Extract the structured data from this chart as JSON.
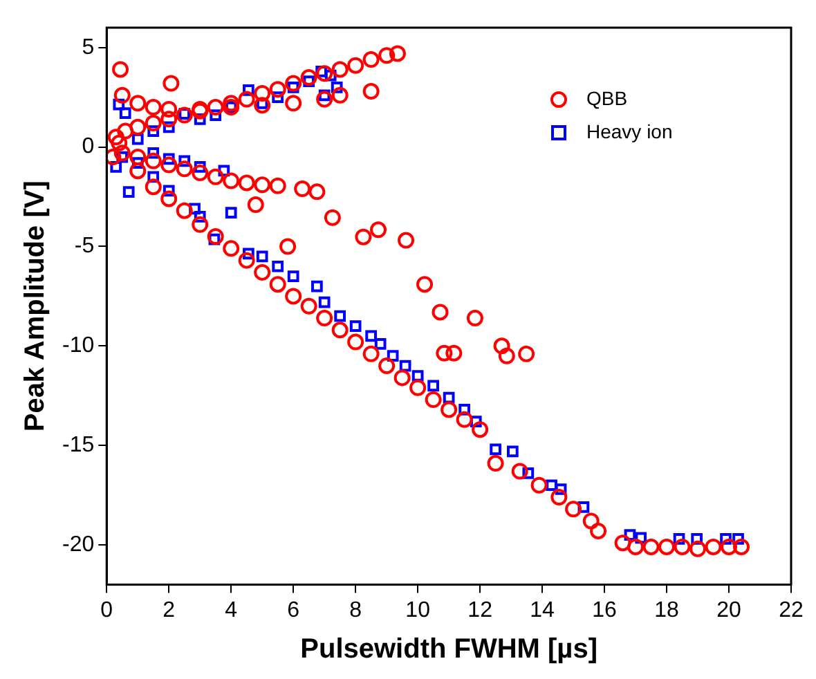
{
  "chart_data": {
    "type": "scatter",
    "xlabel": "Pulsewidth FWHM [µs]",
    "ylabel": "Peak Amplitude [V]",
    "xlim": [
      0,
      22
    ],
    "ylim": [
      -22,
      6
    ],
    "xticks": [
      0,
      2,
      4,
      6,
      8,
      10,
      12,
      14,
      16,
      18,
      20,
      22
    ],
    "yticks": [
      -20,
      -15,
      -10,
      -5,
      0,
      5
    ],
    "grid": false,
    "legend": "top right",
    "series": [
      {
        "name": "QBB",
        "color": "#ff0000",
        "marker": "circle",
        "x": [
          0.3,
          0.6,
          1,
          1.5,
          2,
          2.5,
          3,
          3.5,
          4,
          4.5,
          5,
          5.5,
          6,
          6.5,
          7,
          7.5,
          8,
          8.5,
          9,
          9.35,
          0.5,
          1,
          1.5,
          2,
          3,
          4,
          5,
          6,
          7,
          7.5,
          8.5,
          0.44,
          2.07,
          0.2,
          0.4,
          0.5,
          1,
          1.5,
          2,
          2.5,
          3,
          3.5,
          4,
          4.5,
          5,
          5.5,
          6.29,
          6.76,
          4.79,
          7.26,
          8.25,
          8.73,
          9.62,
          5.82,
          10.22,
          10.72,
          11.84,
          10.85,
          11.16,
          12.7,
          12.86,
          13.49,
          1,
          1.5,
          2,
          2.5,
          3,
          3.5,
          4,
          4.5,
          5,
          5.5,
          6,
          6.5,
          7,
          7.5,
          8,
          8.5,
          9,
          9.5,
          10,
          10.5,
          11,
          11.5,
          12,
          12.5,
          13.28,
          13.9,
          14.54,
          15,
          15.57,
          15.8,
          16.59,
          17,
          17.5,
          18,
          18.5,
          19,
          19.5,
          20,
          20.4
        ],
        "values": [
          0.5,
          0.8,
          1.0,
          1.2,
          1.4,
          1.6,
          1.8,
          2.0,
          2.2,
          2.4,
          2.7,
          2.9,
          3.2,
          3.5,
          3.7,
          3.9,
          4.1,
          4.4,
          4.6,
          4.7,
          2.6,
          2.2,
          2.0,
          1.9,
          1.9,
          2.0,
          2.1,
          2.2,
          2.4,
          2.6,
          2.8,
          3.9,
          3.2,
          -0.5,
          0.2,
          -0.3,
          -0.5,
          -0.7,
          -0.9,
          -1.1,
          -1.3,
          -1.5,
          -1.7,
          -1.8,
          -1.9,
          -1.95,
          -2.1,
          -2.25,
          -2.9,
          -3.55,
          -4.52,
          -4.16,
          -4.69,
          -5.0,
          -6.9,
          -8.3,
          -8.6,
          -10.36,
          -10.36,
          -10.0,
          -10.5,
          -10.4,
          -1.2,
          -2.0,
          -2.6,
          -3.2,
          -3.9,
          -4.5,
          -5.1,
          -5.7,
          -6.3,
          -6.9,
          -7.5,
          -8.0,
          -8.6,
          -9.2,
          -9.8,
          -10.4,
          -11.0,
          -11.6,
          -12.1,
          -12.7,
          -13.2,
          -13.7,
          -14.2,
          -15.9,
          -16.3,
          -17.0,
          -17.6,
          -18.2,
          -18.8,
          -19.3,
          -19.9,
          -20.1,
          -20.1,
          -20.1,
          -20.1,
          -20.2,
          -20.1,
          -20.1,
          -20.1
        ]
      },
      {
        "name": "Heavy ion",
        "color": "#0000ff",
        "marker": "square",
        "x": [
          0.39,
          0.6,
          1,
          1.5,
          2,
          2.5,
          3,
          3.5,
          4,
          4.56,
          5,
          5.5,
          6,
          6.5,
          6.9,
          7.2,
          7.4,
          7.0,
          0.5,
          0.71,
          1,
          1.5,
          2,
          2.5,
          3,
          3.77,
          0.3,
          1.5,
          2,
          2.83,
          3,
          3.46,
          4.0,
          4.56,
          5,
          5.5,
          6,
          6.76,
          7,
          7.5,
          8,
          8.5,
          8.8,
          9.2,
          9.6,
          10,
          10.5,
          11,
          11.5,
          11.87,
          12.5,
          13.05,
          13.55,
          14.3,
          14.6,
          15.33,
          16.82,
          17.17,
          18.4,
          18.97,
          19.9,
          20.3
        ],
        "values": [
          2.14,
          1.7,
          0.4,
          0.8,
          1.0,
          1.67,
          1.4,
          1.6,
          2.0,
          2.86,
          2.2,
          2.5,
          3.0,
          3.3,
          3.8,
          3.6,
          3.0,
          2.6,
          -0.5,
          -2.26,
          -0.8,
          -0.3,
          -0.6,
          -0.7,
          -1.0,
          -1.19,
          -1.0,
          -1.5,
          -2.2,
          -3.1,
          -3.5,
          -4.64,
          -3.3,
          -5.36,
          -5.5,
          -6.0,
          -6.5,
          -7.0,
          -7.8,
          -8.5,
          -9.0,
          -9.5,
          -9.9,
          -10.5,
          -11.0,
          -11.5,
          -12.0,
          -12.6,
          -13.2,
          -13.8,
          -15.2,
          -15.3,
          -16.4,
          -17.0,
          -17.2,
          -18.1,
          -19.5,
          -19.65,
          -19.7,
          -19.7,
          -19.7,
          -19.7
        ]
      }
    ]
  }
}
